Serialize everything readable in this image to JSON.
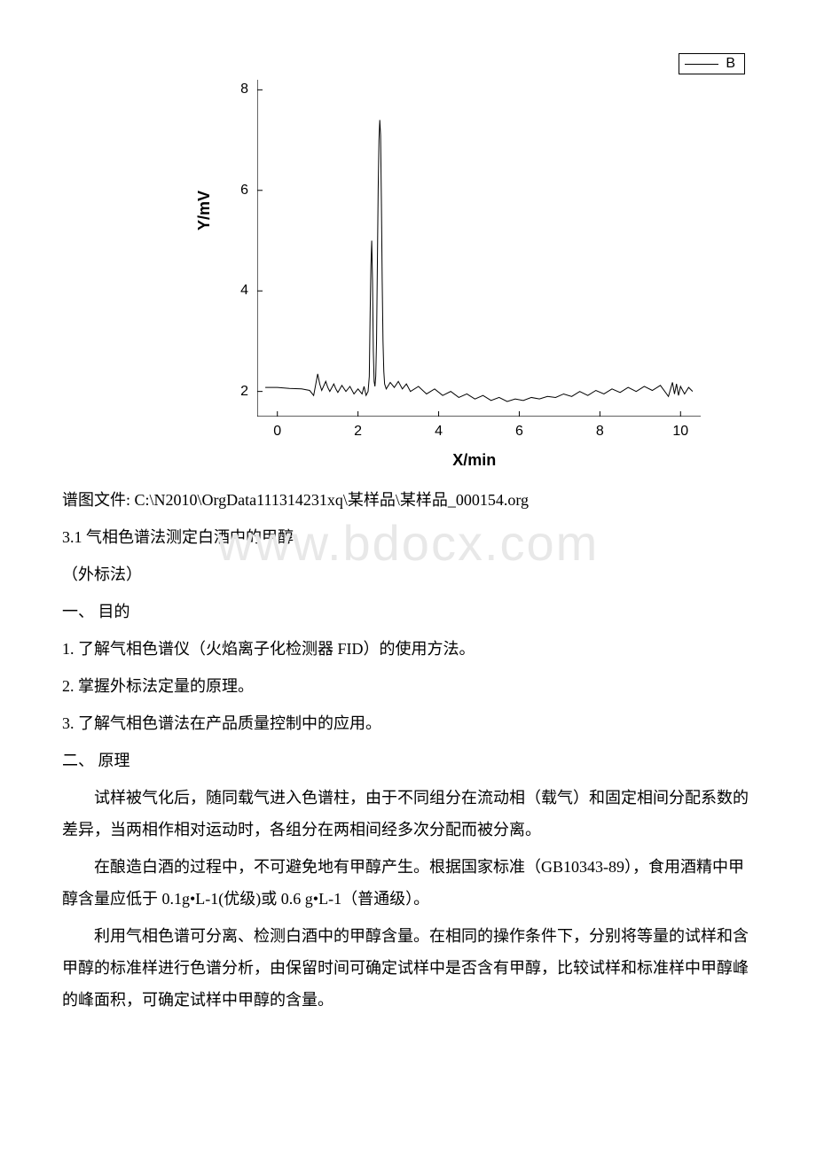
{
  "watermark": "www.bdocx.com",
  "chart": {
    "type": "line",
    "legend_label": "B",
    "x_label": "X/min",
    "y_label": "Y/mV",
    "xlim": [
      -0.5,
      10.5
    ],
    "ylim": [
      1.5,
      8.2
    ],
    "xticks": [
      0,
      2,
      4,
      6,
      8,
      10
    ],
    "yticks": [
      2,
      4,
      6,
      8
    ],
    "line_color": "#000000",
    "line_width": 1.0,
    "background_color": "#ffffff",
    "axis_color": "#000000",
    "tick_fontsize": 16,
    "label_fontsize": 18,
    "data": [
      [
        -0.3,
        2.08
      ],
      [
        0.0,
        2.08
      ],
      [
        0.3,
        2.06
      ],
      [
        0.6,
        2.05
      ],
      [
        0.8,
        2.02
      ],
      [
        0.9,
        1.92
      ],
      [
        1.0,
        2.35
      ],
      [
        1.05,
        2.15
      ],
      [
        1.1,
        2.02
      ],
      [
        1.2,
        2.2
      ],
      [
        1.25,
        2.08
      ],
      [
        1.3,
        2.0
      ],
      [
        1.4,
        2.15
      ],
      [
        1.45,
        2.05
      ],
      [
        1.5,
        1.98
      ],
      [
        1.6,
        2.12
      ],
      [
        1.7,
        2.0
      ],
      [
        1.8,
        2.1
      ],
      [
        1.9,
        1.95
      ],
      [
        2.0,
        2.05
      ],
      [
        2.1,
        1.95
      ],
      [
        2.15,
        2.1
      ],
      [
        2.2,
        1.92
      ],
      [
        2.25,
        2.0
      ],
      [
        2.28,
        2.3
      ],
      [
        2.3,
        3.5
      ],
      [
        2.32,
        4.5
      ],
      [
        2.34,
        5.0
      ],
      [
        2.36,
        4.2
      ],
      [
        2.38,
        2.8
      ],
      [
        2.4,
        2.2
      ],
      [
        2.42,
        2.1
      ],
      [
        2.44,
        2.3
      ],
      [
        2.46,
        3.0
      ],
      [
        2.48,
        4.5
      ],
      [
        2.5,
        6.0
      ],
      [
        2.52,
        7.0
      ],
      [
        2.54,
        7.4
      ],
      [
        2.56,
        7.1
      ],
      [
        2.58,
        5.8
      ],
      [
        2.6,
        4.2
      ],
      [
        2.62,
        3.0
      ],
      [
        2.64,
        2.4
      ],
      [
        2.66,
        2.15
      ],
      [
        2.7,
        2.05
      ],
      [
        2.8,
        2.18
      ],
      [
        2.9,
        2.08
      ],
      [
        3.0,
        2.2
      ],
      [
        3.1,
        2.05
      ],
      [
        3.2,
        2.15
      ],
      [
        3.3,
        2.0
      ],
      [
        3.5,
        2.1
      ],
      [
        3.7,
        1.95
      ],
      [
        3.9,
        2.05
      ],
      [
        4.1,
        1.92
      ],
      [
        4.3,
        2.0
      ],
      [
        4.5,
        1.88
      ],
      [
        4.7,
        1.95
      ],
      [
        4.9,
        1.85
      ],
      [
        5.1,
        1.92
      ],
      [
        5.3,
        1.82
      ],
      [
        5.5,
        1.88
      ],
      [
        5.7,
        1.8
      ],
      [
        5.9,
        1.85
      ],
      [
        6.1,
        1.82
      ],
      [
        6.3,
        1.88
      ],
      [
        6.5,
        1.85
      ],
      [
        6.7,
        1.9
      ],
      [
        6.9,
        1.88
      ],
      [
        7.1,
        1.95
      ],
      [
        7.3,
        1.9
      ],
      [
        7.5,
        2.0
      ],
      [
        7.7,
        1.92
      ],
      [
        7.9,
        2.02
      ],
      [
        8.1,
        1.95
      ],
      [
        8.3,
        2.05
      ],
      [
        8.5,
        1.98
      ],
      [
        8.7,
        2.08
      ],
      [
        8.9,
        2.0
      ],
      [
        9.1,
        2.1
      ],
      [
        9.3,
        2.02
      ],
      [
        9.5,
        2.12
      ],
      [
        9.7,
        1.9
      ],
      [
        9.8,
        2.18
      ],
      [
        9.85,
        1.95
      ],
      [
        9.9,
        2.15
      ],
      [
        9.95,
        1.92
      ],
      [
        10.0,
        2.1
      ],
      [
        10.1,
        1.95
      ],
      [
        10.2,
        2.08
      ],
      [
        10.3,
        2.0
      ]
    ]
  },
  "text": {
    "file_label": "谱图文件: C:\\N2010\\OrgData111314231xq\\某样品\\某样品_000154.org",
    "section_3_1": "3.1 气相色谱法测定白酒中的甲醇",
    "method": "（外标法）",
    "h1": "一、 目的",
    "p1": "1. 了解气相色谱仪（火焰离子化检测器 FID）的使用方法。",
    "p2": "2. 掌握外标法定量的原理。",
    "p3": "3. 了解气相色谱法在产品质量控制中的应用。",
    "h2": "二、 原理",
    "para1": "试样被气化后，随同载气进入色谱柱，由于不同组分在流动相（载气）和固定相间分配系数的差异，当两相作相对运动时，各组分在两相间经多次分配而被分离。",
    "para2": "在酿造白酒的过程中，不可避免地有甲醇产生。根据国家标准（GB10343-89），食用酒精中甲醇含量应低于 0.1g•L-1(优级)或 0.6 g•L-1（普通级）。",
    "para3": "利用气相色谱可分离、检测白酒中的甲醇含量。在相同的操作条件下，分别将等量的试样和含甲醇的标准样进行色谱分析，由保留时间可确定试样中是否含有甲醇，比较试样和标准样中甲醇峰的峰面积，可确定试样中甲醇的含量。"
  }
}
